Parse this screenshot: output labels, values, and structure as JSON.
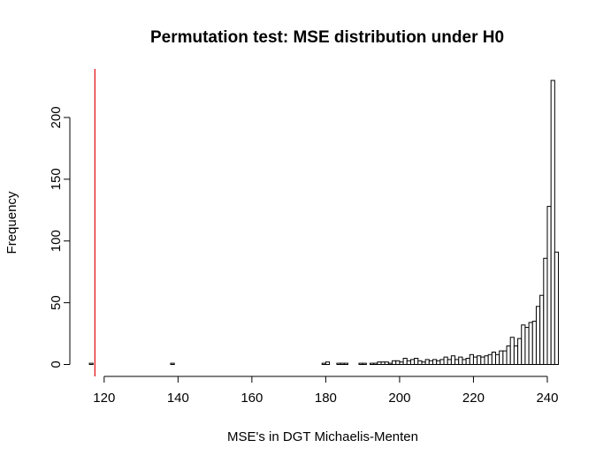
{
  "chart_data": {
    "type": "bar",
    "title": "Permutation test: MSE distribution under H0",
    "xlabel": "MSE's in DGT Michaelis-Menten",
    "ylabel": "Frequency",
    "xlim": [
      116,
      243
    ],
    "ylim": [
      0,
      230
    ],
    "bin_width": 1,
    "x_ticks": [
      120,
      140,
      160,
      180,
      200,
      220,
      240
    ],
    "y_ticks": [
      0,
      50,
      100,
      150,
      200
    ],
    "bins": [
      {
        "x0": 116,
        "count": 1
      },
      {
        "x0": 117,
        "count": 0
      },
      {
        "x0": 118,
        "count": 0
      },
      {
        "x0": 119,
        "count": 0
      },
      {
        "x0": 120,
        "count": 0
      },
      {
        "x0": 121,
        "count": 0
      },
      {
        "x0": 122,
        "count": 0
      },
      {
        "x0": 123,
        "count": 0
      },
      {
        "x0": 124,
        "count": 0
      },
      {
        "x0": 125,
        "count": 0
      },
      {
        "x0": 126,
        "count": 0
      },
      {
        "x0": 127,
        "count": 0
      },
      {
        "x0": 128,
        "count": 0
      },
      {
        "x0": 129,
        "count": 0
      },
      {
        "x0": 130,
        "count": 0
      },
      {
        "x0": 131,
        "count": 0
      },
      {
        "x0": 132,
        "count": 0
      },
      {
        "x0": 133,
        "count": 0
      },
      {
        "x0": 134,
        "count": 0
      },
      {
        "x0": 135,
        "count": 0
      },
      {
        "x0": 136,
        "count": 0
      },
      {
        "x0": 137,
        "count": 0
      },
      {
        "x0": 138,
        "count": 1
      },
      {
        "x0": 139,
        "count": 0
      },
      {
        "x0": 140,
        "count": 0
      },
      {
        "x0": 141,
        "count": 0
      },
      {
        "x0": 142,
        "count": 0
      },
      {
        "x0": 143,
        "count": 0
      },
      {
        "x0": 144,
        "count": 0
      },
      {
        "x0": 145,
        "count": 0
      },
      {
        "x0": 146,
        "count": 0
      },
      {
        "x0": 147,
        "count": 0
      },
      {
        "x0": 148,
        "count": 0
      },
      {
        "x0": 149,
        "count": 0
      },
      {
        "x0": 150,
        "count": 0
      },
      {
        "x0": 151,
        "count": 0
      },
      {
        "x0": 152,
        "count": 0
      },
      {
        "x0": 153,
        "count": 0
      },
      {
        "x0": 154,
        "count": 0
      },
      {
        "x0": 155,
        "count": 0
      },
      {
        "x0": 156,
        "count": 0
      },
      {
        "x0": 157,
        "count": 0
      },
      {
        "x0": 158,
        "count": 0
      },
      {
        "x0": 159,
        "count": 0
      },
      {
        "x0": 160,
        "count": 0
      },
      {
        "x0": 161,
        "count": 0
      },
      {
        "x0": 162,
        "count": 0
      },
      {
        "x0": 163,
        "count": 0
      },
      {
        "x0": 164,
        "count": 0
      },
      {
        "x0": 165,
        "count": 0
      },
      {
        "x0": 166,
        "count": 0
      },
      {
        "x0": 167,
        "count": 0
      },
      {
        "x0": 168,
        "count": 0
      },
      {
        "x0": 169,
        "count": 0
      },
      {
        "x0": 170,
        "count": 0
      },
      {
        "x0": 171,
        "count": 0
      },
      {
        "x0": 172,
        "count": 0
      },
      {
        "x0": 173,
        "count": 0
      },
      {
        "x0": 174,
        "count": 0
      },
      {
        "x0": 175,
        "count": 0
      },
      {
        "x0": 176,
        "count": 0
      },
      {
        "x0": 177,
        "count": 0
      },
      {
        "x0": 178,
        "count": 0
      },
      {
        "x0": 179,
        "count": 1
      },
      {
        "x0": 180,
        "count": 2
      },
      {
        "x0": 181,
        "count": 0
      },
      {
        "x0": 182,
        "count": 0
      },
      {
        "x0": 183,
        "count": 1
      },
      {
        "x0": 184,
        "count": 1
      },
      {
        "x0": 185,
        "count": 1
      },
      {
        "x0": 186,
        "count": 0
      },
      {
        "x0": 187,
        "count": 0
      },
      {
        "x0": 188,
        "count": 0
      },
      {
        "x0": 189,
        "count": 1
      },
      {
        "x0": 190,
        "count": 1
      },
      {
        "x0": 191,
        "count": 0
      },
      {
        "x0": 192,
        "count": 1
      },
      {
        "x0": 193,
        "count": 1
      },
      {
        "x0": 194,
        "count": 2
      },
      {
        "x0": 195,
        "count": 2
      },
      {
        "x0": 196,
        "count": 2
      },
      {
        "x0": 197,
        "count": 1
      },
      {
        "x0": 198,
        "count": 3
      },
      {
        "x0": 199,
        "count": 3
      },
      {
        "x0": 200,
        "count": 2
      },
      {
        "x0": 201,
        "count": 5
      },
      {
        "x0": 202,
        "count": 3
      },
      {
        "x0": 203,
        "count": 4
      },
      {
        "x0": 204,
        "count": 5
      },
      {
        "x0": 205,
        "count": 3
      },
      {
        "x0": 206,
        "count": 2
      },
      {
        "x0": 207,
        "count": 4
      },
      {
        "x0": 208,
        "count": 3
      },
      {
        "x0": 209,
        "count": 4
      },
      {
        "x0": 210,
        "count": 3
      },
      {
        "x0": 211,
        "count": 4
      },
      {
        "x0": 212,
        "count": 6
      },
      {
        "x0": 213,
        "count": 4
      },
      {
        "x0": 214,
        "count": 7
      },
      {
        "x0": 215,
        "count": 4
      },
      {
        "x0": 216,
        "count": 6
      },
      {
        "x0": 217,
        "count": 4
      },
      {
        "x0": 218,
        "count": 5
      },
      {
        "x0": 219,
        "count": 8
      },
      {
        "x0": 220,
        "count": 6
      },
      {
        "x0": 221,
        "count": 7
      },
      {
        "x0": 222,
        "count": 6
      },
      {
        "x0": 223,
        "count": 7
      },
      {
        "x0": 224,
        "count": 8
      },
      {
        "x0": 225,
        "count": 10
      },
      {
        "x0": 226,
        "count": 8
      },
      {
        "x0": 227,
        "count": 11
      },
      {
        "x0": 228,
        "count": 11
      },
      {
        "x0": 229,
        "count": 15
      },
      {
        "x0": 230,
        "count": 22
      },
      {
        "x0": 231,
        "count": 15
      },
      {
        "x0": 232,
        "count": 21
      },
      {
        "x0": 233,
        "count": 32
      },
      {
        "x0": 234,
        "count": 30
      },
      {
        "x0": 235,
        "count": 34
      },
      {
        "x0": 236,
        "count": 35
      },
      {
        "x0": 237,
        "count": 47
      },
      {
        "x0": 238,
        "count": 56
      },
      {
        "x0": 239,
        "count": 86
      },
      {
        "x0": 240,
        "count": 128
      },
      {
        "x0": 241,
        "count": 230
      },
      {
        "x0": 242,
        "count": 91
      }
    ],
    "reference_line": {
      "x": 117.5,
      "color": "#e41a1c"
    },
    "bar_fill": "#ffffff",
    "bar_stroke": "#000000"
  }
}
